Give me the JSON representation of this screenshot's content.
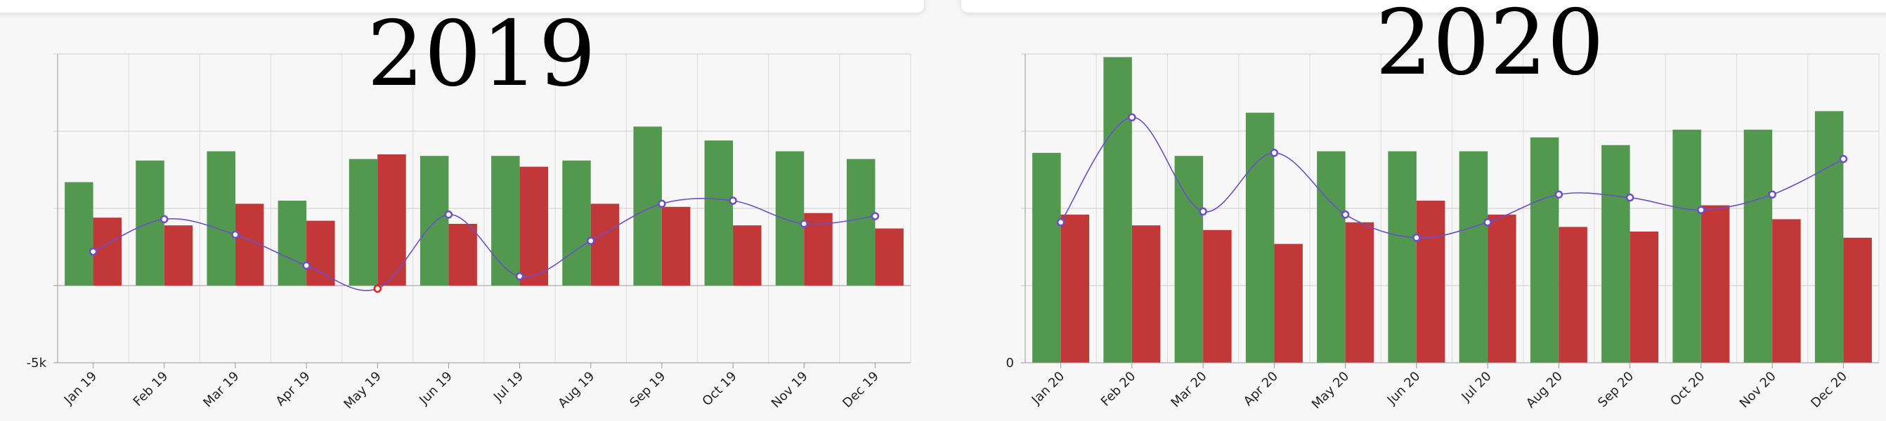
{
  "chart_data": [
    {
      "type": "bar",
      "title": "2019",
      "categories": [
        "Jan 19",
        "Feb 19",
        "Mar 19",
        "Apr 19",
        "May 19",
        "Jun 19",
        "Jul 19",
        "Aug 19",
        "Sep 19",
        "Oct 19",
        "Nov 19",
        "Dec 19"
      ],
      "series": [
        {
          "color": "#52994f",
          "kind": "bar",
          "values": [
            6700,
            8100,
            8700,
            5500,
            8200,
            8400,
            8400,
            8100,
            10300,
            9400,
            8700,
            8200
          ]
        },
        {
          "color": "#c23838",
          "kind": "bar",
          "values": [
            4400,
            3900,
            5300,
            4200,
            8500,
            4000,
            7700,
            5300,
            5100,
            3900,
            4700,
            3700
          ]
        },
        {
          "color": "#6a4fc8",
          "kind": "line",
          "values": [
            2200,
            4300,
            3300,
            1300,
            -200,
            4600,
            600,
            2900,
            5300,
            5500,
            4000,
            4500
          ]
        }
      ],
      "ylim": [
        -5000,
        15000
      ],
      "yticks": [
        {
          "value": -5000,
          "label": "-5k"
        }
      ],
      "gridlines": [
        0,
        5000,
        10000,
        15000
      ],
      "grid": true
    },
    {
      "type": "bar",
      "title": "2020",
      "categories": [
        "Jan 20",
        "Feb 20",
        "Mar 20",
        "Apr 20",
        "May 20",
        "Jun 20",
        "Jul 20",
        "Aug 20",
        "Sep 20",
        "Oct 20",
        "Nov 20",
        "Dec 20"
      ],
      "series": [
        {
          "color": "#52994f",
          "kind": "bar",
          "values": [
            13600,
            19800,
            13400,
            16200,
            13700,
            13700,
            13700,
            14600,
            14100,
            15100,
            15100,
            16300
          ]
        },
        {
          "color": "#c23838",
          "kind": "bar",
          "values": [
            9600,
            8900,
            8600,
            7700,
            9100,
            10500,
            9600,
            8800,
            8500,
            10200,
            9300,
            8100
          ]
        },
        {
          "color": "#6a4fc8",
          "kind": "line",
          "values": [
            9100,
            15900,
            9800,
            13600,
            9600,
            8100,
            9100,
            10900,
            10700,
            9900,
            10900,
            13200
          ]
        }
      ],
      "ylim": [
        0,
        20000
      ],
      "yticks": [
        0
      ],
      "gridlines": [
        5000,
        10000,
        15000,
        20000
      ],
      "grid": true
    }
  ]
}
